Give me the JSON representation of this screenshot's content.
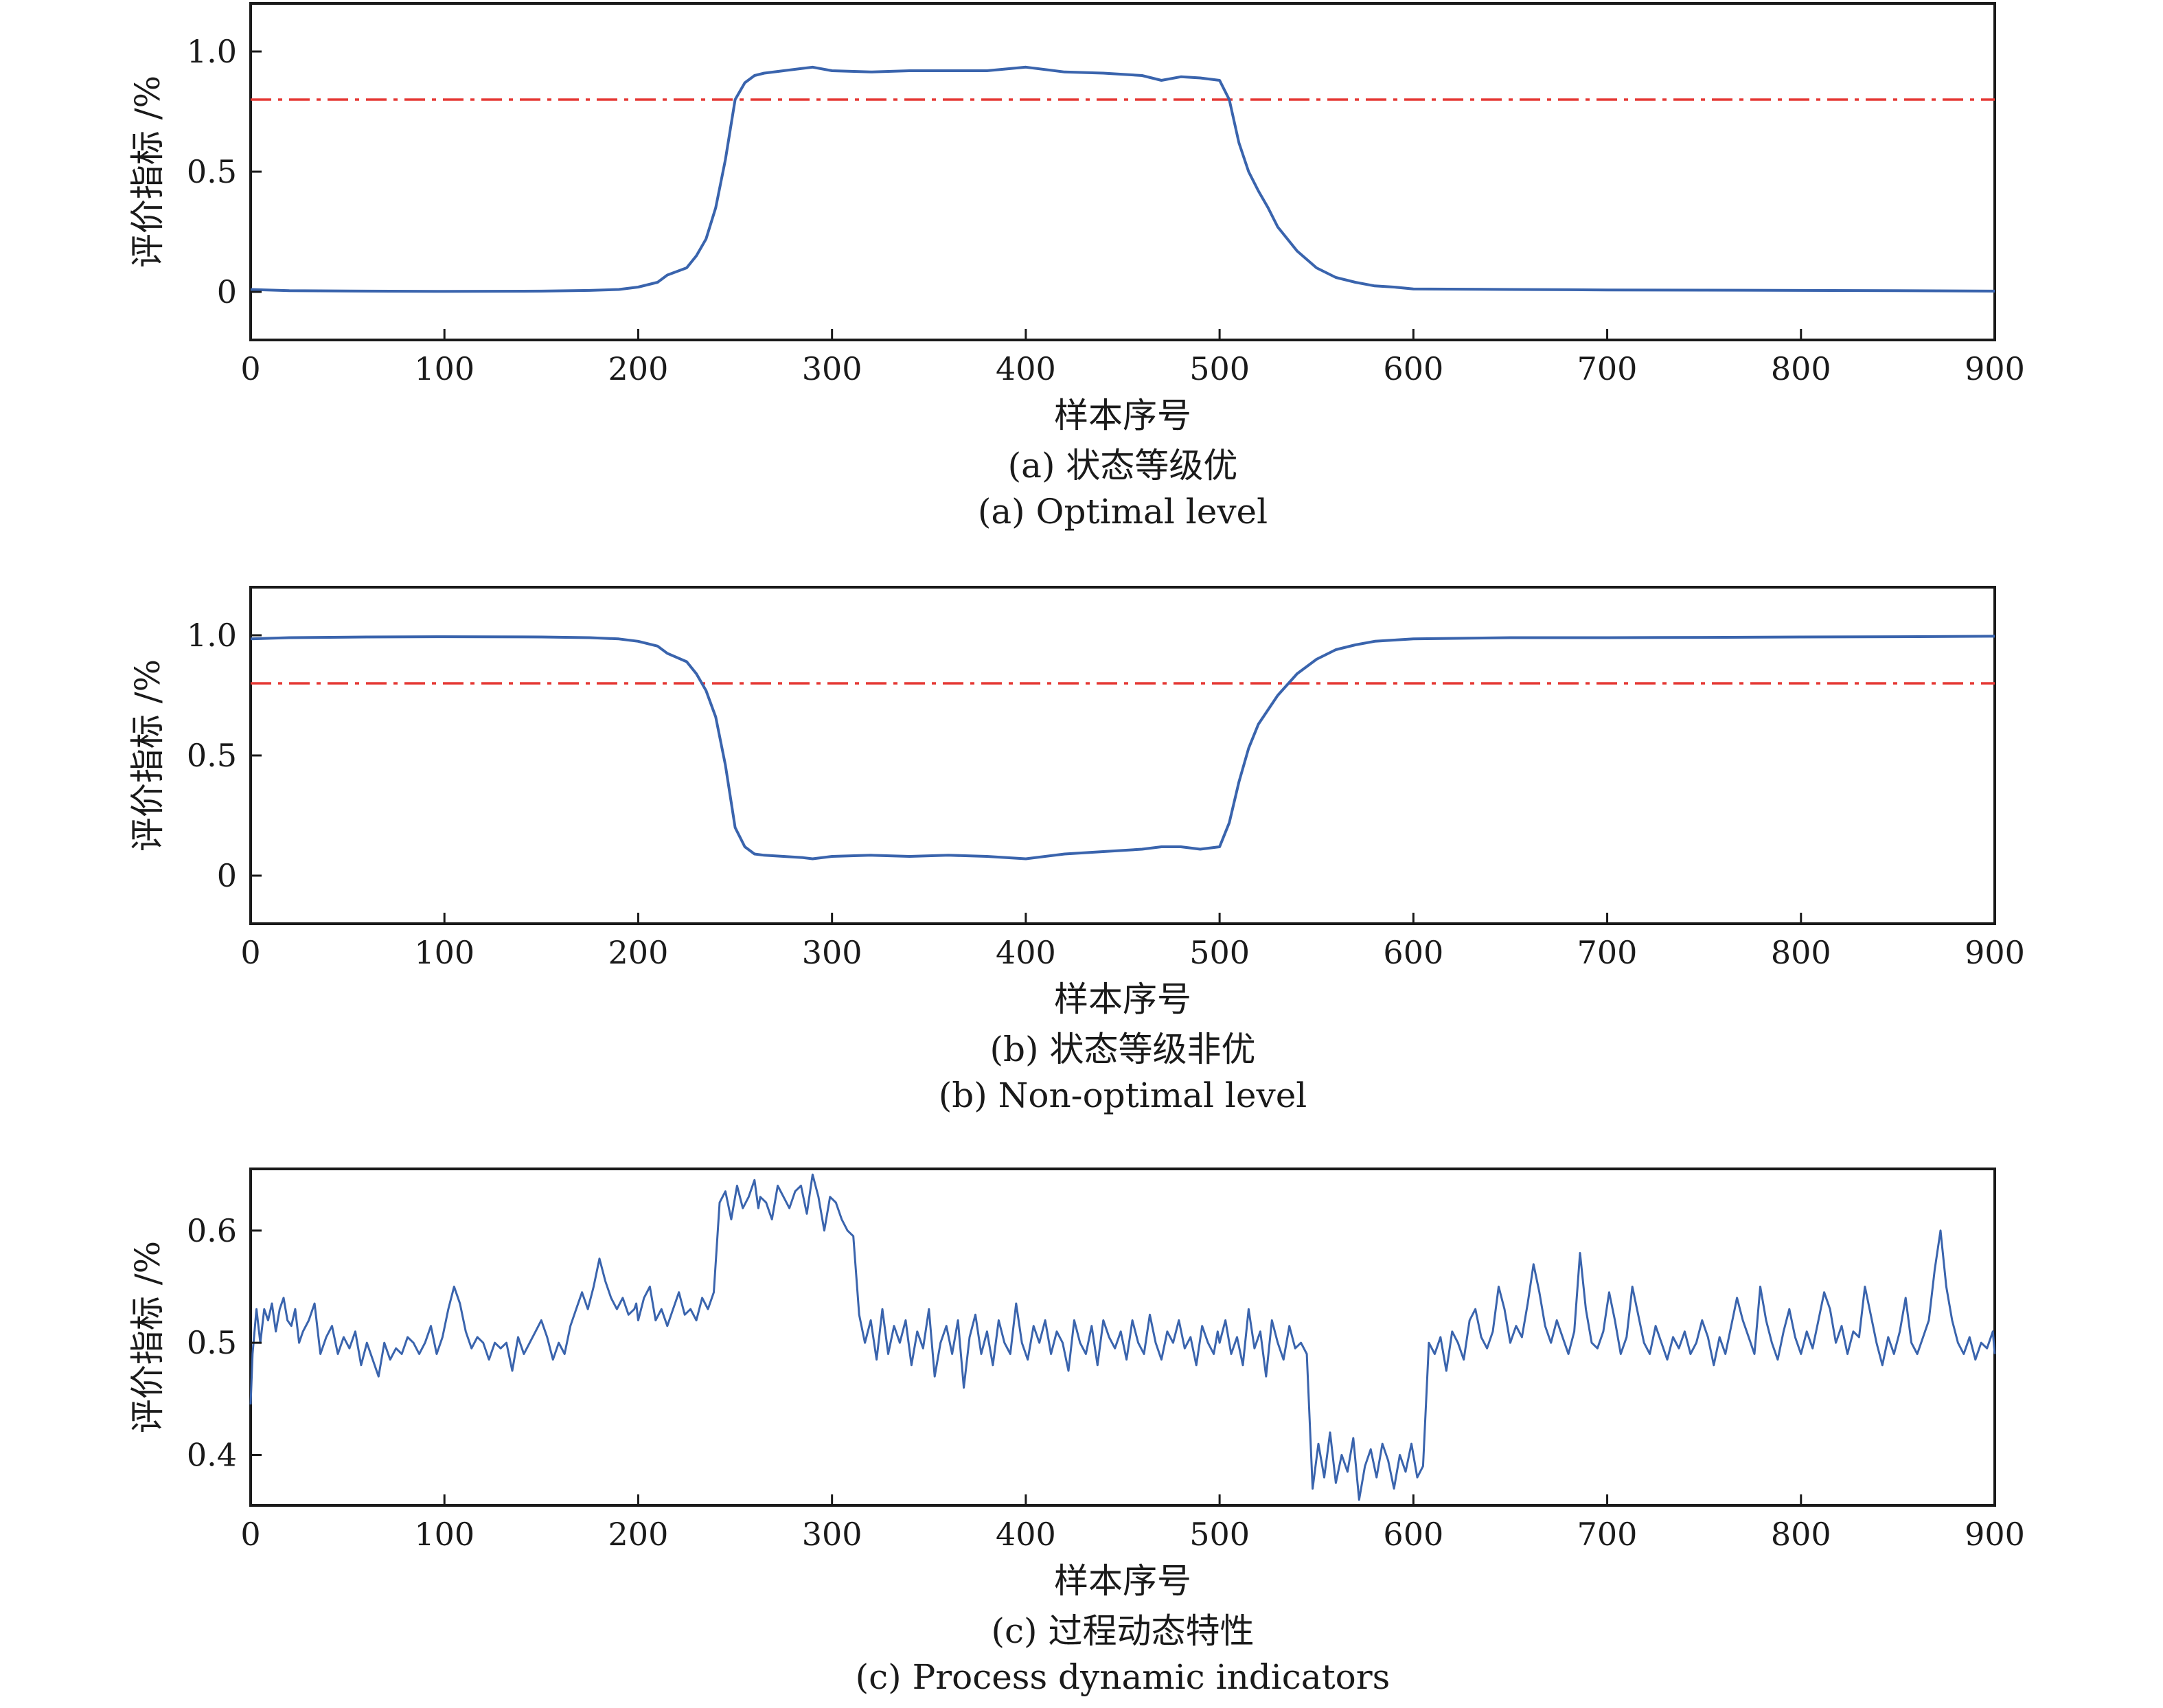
{
  "colors": {
    "series": "#3a64ad",
    "threshold": "#e53935",
    "axis": "#1a1a1a"
  },
  "chart_data": [
    {
      "type": "line",
      "caption_cn": "(a) 状态等级优",
      "caption_en": "(a) Optimal level",
      "xlabel": "样本序号",
      "ylabel": "评价指标 /%",
      "xlim": [
        0,
        900
      ],
      "ylim": [
        -0.2,
        1.2
      ],
      "xticks": [
        "0",
        "100",
        "200",
        "300",
        "400",
        "500",
        "600",
        "700",
        "800",
        "900"
      ],
      "yticks": [
        "0",
        "0.5",
        "1.0"
      ],
      "yticks_values": [
        0,
        0.5,
        1.0
      ],
      "threshold": 0.8,
      "series": [
        {
          "x": [
            0,
            20,
            60,
            100,
            150,
            175,
            190,
            200,
            210,
            215,
            225,
            230,
            235,
            240,
            245,
            250,
            255,
            260,
            265,
            275,
            285,
            290,
            300,
            320,
            340,
            360,
            380,
            400,
            420,
            440,
            460,
            470,
            480,
            490,
            500,
            505,
            510,
            515,
            520,
            525,
            530,
            540,
            550,
            560,
            570,
            580,
            590,
            600,
            650,
            700,
            750,
            800,
            850,
            900
          ],
          "y": [
            0.01,
            0.005,
            0.003,
            0.002,
            0.003,
            0.006,
            0.01,
            0.02,
            0.04,
            0.07,
            0.1,
            0.15,
            0.22,
            0.35,
            0.55,
            0.8,
            0.87,
            0.9,
            0.91,
            0.92,
            0.93,
            0.935,
            0.92,
            0.915,
            0.92,
            0.92,
            0.92,
            0.935,
            0.915,
            0.91,
            0.9,
            0.88,
            0.895,
            0.89,
            0.88,
            0.8,
            0.62,
            0.5,
            0.42,
            0.35,
            0.27,
            0.17,
            0.1,
            0.06,
            0.04,
            0.025,
            0.02,
            0.012,
            0.01,
            0.008,
            0.007,
            0.006,
            0.005,
            0.003
          ]
        }
      ]
    },
    {
      "type": "line",
      "caption_cn": "(b) 状态等级非优",
      "caption_en": "(b) Non-optimal level",
      "xlabel": "样本序号",
      "ylabel": "评价指标 /%",
      "xlim": [
        0,
        900
      ],
      "ylim": [
        -0.2,
        1.2
      ],
      "xticks": [
        "0",
        "100",
        "200",
        "300",
        "400",
        "500",
        "600",
        "700",
        "800",
        "900"
      ],
      "yticks": [
        "0",
        "0.5",
        "1.0"
      ],
      "yticks_values": [
        0,
        0.5,
        1.0
      ],
      "threshold": 0.8,
      "series": [
        {
          "x": [
            0,
            20,
            60,
            100,
            150,
            175,
            190,
            200,
            210,
            215,
            225,
            230,
            235,
            240,
            245,
            250,
            255,
            260,
            265,
            275,
            285,
            290,
            300,
            320,
            340,
            360,
            380,
            400,
            420,
            440,
            460,
            470,
            480,
            490,
            500,
            505,
            510,
            515,
            520,
            525,
            530,
            540,
            550,
            560,
            570,
            580,
            590,
            600,
            650,
            700,
            750,
            800,
            850,
            900
          ],
          "y": [
            0.985,
            0.99,
            0.993,
            0.994,
            0.993,
            0.99,
            0.985,
            0.975,
            0.955,
            0.925,
            0.89,
            0.84,
            0.77,
            0.66,
            0.46,
            0.2,
            0.12,
            0.09,
            0.085,
            0.08,
            0.075,
            0.07,
            0.08,
            0.085,
            0.08,
            0.085,
            0.08,
            0.07,
            0.09,
            0.1,
            0.11,
            0.12,
            0.12,
            0.11,
            0.12,
            0.22,
            0.39,
            0.53,
            0.63,
            0.69,
            0.75,
            0.84,
            0.9,
            0.94,
            0.96,
            0.975,
            0.98,
            0.985,
            0.99,
            0.99,
            0.991,
            0.993,
            0.994,
            0.996
          ]
        }
      ]
    },
    {
      "type": "line",
      "caption_cn": "(c) 过程动态特性",
      "caption_en": "(c) Process dynamic indicators",
      "xlabel": "样本序号",
      "ylabel": "评价指标 /%",
      "xlim": [
        0,
        900
      ],
      "ylim": [
        0.355,
        0.655
      ],
      "xticks": [
        "0",
        "100",
        "200",
        "300",
        "400",
        "500",
        "600",
        "700",
        "800",
        "900"
      ],
      "yticks": [
        "0.4",
        "0.5",
        "0.6"
      ],
      "yticks_values": [
        0.4,
        0.5,
        0.6
      ],
      "series": [
        {
          "x": [
            0,
            1,
            3,
            5,
            7,
            9,
            11,
            13,
            15,
            17,
            19,
            21,
            23,
            25,
            27,
            30,
            33,
            36,
            39,
            42,
            45,
            48,
            51,
            54,
            57,
            60,
            63,
            66,
            69,
            72,
            75,
            78,
            81,
            84,
            87,
            90,
            93,
            96,
            99,
            102,
            105,
            108,
            111,
            114,
            117,
            120,
            123,
            126,
            129,
            132,
            135,
            138,
            141,
            144,
            147,
            150,
            153,
            156,
            159,
            162,
            165,
            168,
            171,
            174,
            177,
            180,
            183,
            186,
            189,
            192,
            195,
            198,
            199,
            200,
            203,
            206,
            209,
            212,
            215,
            218,
            221,
            224,
            227,
            230,
            233,
            236,
            239,
            242,
            245,
            248,
            251,
            254,
            257,
            260,
            262,
            263,
            266,
            269,
            272,
            275,
            278,
            281,
            284,
            287,
            290,
            293,
            296,
            299,
            302,
            305,
            308,
            311,
            314,
            317,
            320,
            323,
            326,
            329,
            332,
            335,
            338,
            341,
            344,
            347,
            350,
            353,
            356,
            359,
            362,
            365,
            368,
            371,
            374,
            377,
            380,
            383,
            386,
            389,
            392,
            395,
            398,
            401,
            404,
            407,
            410,
            413,
            416,
            419,
            422,
            425,
            428,
            431,
            434,
            437,
            440,
            443,
            446,
            449,
            452,
            455,
            458,
            461,
            464,
            467,
            470,
            473,
            476,
            479,
            482,
            485,
            488,
            491,
            494,
            497,
            499,
            500,
            503,
            506,
            509,
            512,
            515,
            518,
            521,
            524,
            527,
            530,
            533,
            536,
            539,
            542,
            545,
            548,
            551,
            554,
            557,
            559,
            560,
            563,
            566,
            569,
            572,
            575,
            578,
            581,
            584,
            587,
            590,
            593,
            596,
            599,
            602,
            605,
            608,
            611,
            614,
            617,
            620,
            623,
            626,
            629,
            632,
            635,
            638,
            641,
            644,
            647,
            650,
            653,
            656,
            659,
            662,
            665,
            668,
            671,
            674,
            677,
            680,
            683,
            686,
            689,
            692,
            695,
            698,
            701,
            704,
            707,
            710,
            713,
            716,
            719,
            722,
            725,
            728,
            731,
            734,
            737,
            740,
            743,
            746,
            749,
            752,
            755,
            758,
            761,
            764,
            767,
            770,
            773,
            776,
            779,
            782,
            785,
            788,
            791,
            794,
            797,
            800,
            803,
            806,
            809,
            812,
            815,
            818,
            821,
            824,
            827,
            830,
            833,
            836,
            839,
            842,
            845,
            848,
            851,
            854,
            857,
            860,
            863,
            866,
            869,
            872,
            875,
            878,
            881,
            884,
            887,
            890,
            893,
            896,
            899,
            900
          ],
          "y": [
            0.445,
            0.49,
            0.53,
            0.5,
            0.53,
            0.52,
            0.535,
            0.51,
            0.53,
            0.54,
            0.52,
            0.515,
            0.53,
            0.5,
            0.51,
            0.52,
            0.535,
            0.49,
            0.505,
            0.515,
            0.49,
            0.505,
            0.495,
            0.51,
            0.48,
            0.5,
            0.485,
            0.47,
            0.5,
            0.485,
            0.495,
            0.49,
            0.505,
            0.5,
            0.49,
            0.5,
            0.515,
            0.49,
            0.505,
            0.53,
            0.55,
            0.535,
            0.51,
            0.495,
            0.505,
            0.5,
            0.485,
            0.5,
            0.495,
            0.5,
            0.475,
            0.505,
            0.49,
            0.5,
            0.51,
            0.52,
            0.505,
            0.485,
            0.5,
            0.49,
            0.515,
            0.53,
            0.545,
            0.53,
            0.55,
            0.575,
            0.555,
            0.54,
            0.53,
            0.54,
            0.525,
            0.53,
            0.535,
            0.52,
            0.54,
            0.55,
            0.52,
            0.53,
            0.515,
            0.53,
            0.545,
            0.525,
            0.53,
            0.52,
            0.54,
            0.53,
            0.545,
            0.625,
            0.635,
            0.61,
            0.64,
            0.62,
            0.63,
            0.645,
            0.62,
            0.63,
            0.625,
            0.61,
            0.64,
            0.63,
            0.62,
            0.635,
            0.64,
            0.615,
            0.65,
            0.63,
            0.6,
            0.63,
            0.625,
            0.61,
            0.6,
            0.595,
            0.525,
            0.5,
            0.52,
            0.485,
            0.53,
            0.49,
            0.515,
            0.5,
            0.52,
            0.48,
            0.51,
            0.495,
            0.53,
            0.47,
            0.5,
            0.515,
            0.49,
            0.52,
            0.46,
            0.505,
            0.525,
            0.49,
            0.51,
            0.48,
            0.52,
            0.5,
            0.49,
            0.535,
            0.5,
            0.485,
            0.515,
            0.5,
            0.52,
            0.49,
            0.51,
            0.5,
            0.475,
            0.52,
            0.5,
            0.49,
            0.515,
            0.48,
            0.52,
            0.505,
            0.495,
            0.51,
            0.485,
            0.52,
            0.5,
            0.49,
            0.525,
            0.5,
            0.485,
            0.51,
            0.5,
            0.52,
            0.495,
            0.505,
            0.48,
            0.515,
            0.5,
            0.49,
            0.51,
            0.5,
            0.52,
            0.49,
            0.505,
            0.48,
            0.53,
            0.495,
            0.51,
            0.47,
            0.52,
            0.5,
            0.485,
            0.515,
            0.495,
            0.5,
            0.49,
            0.37,
            0.41,
            0.38,
            0.42,
            0.39,
            0.375,
            0.4,
            0.385,
            0.415,
            0.36,
            0.39,
            0.405,
            0.38,
            0.41,
            0.395,
            0.37,
            0.4,
            0.385,
            0.41,
            0.38,
            0.39,
            0.5,
            0.49,
            0.505,
            0.475,
            0.51,
            0.5,
            0.485,
            0.52,
            0.53,
            0.505,
            0.495,
            0.51,
            0.55,
            0.53,
            0.5,
            0.515,
            0.505,
            0.535,
            0.57,
            0.545,
            0.515,
            0.5,
            0.52,
            0.505,
            0.49,
            0.51,
            0.58,
            0.53,
            0.5,
            0.495,
            0.51,
            0.545,
            0.52,
            0.49,
            0.505,
            0.55,
            0.525,
            0.5,
            0.49,
            0.515,
            0.5,
            0.485,
            0.505,
            0.495,
            0.51,
            0.49,
            0.5,
            0.52,
            0.505,
            0.48,
            0.505,
            0.49,
            0.515,
            0.54,
            0.52,
            0.505,
            0.49,
            0.55,
            0.52,
            0.5,
            0.485,
            0.51,
            0.53,
            0.505,
            0.49,
            0.51,
            0.495,
            0.52,
            0.545,
            0.53,
            0.5,
            0.515,
            0.49,
            0.51,
            0.505,
            0.55,
            0.525,
            0.5,
            0.48,
            0.505,
            0.49,
            0.51,
            0.54,
            0.5,
            0.49,
            0.505,
            0.52,
            0.565,
            0.6,
            0.55,
            0.52,
            0.5,
            0.49,
            0.505,
            0.485,
            0.5,
            0.495,
            0.51,
            0.49
          ]
        }
      ]
    }
  ]
}
